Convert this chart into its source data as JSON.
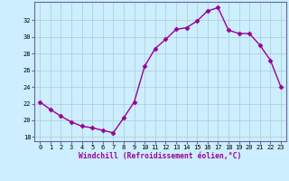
{
  "hours": [
    0,
    1,
    2,
    3,
    4,
    5,
    6,
    7,
    8,
    9,
    10,
    11,
    12,
    13,
    14,
    15,
    16,
    17,
    18,
    19,
    20,
    21,
    22,
    23
  ],
  "windchill": [
    22.2,
    21.3,
    20.5,
    19.8,
    19.3,
    19.1,
    18.8,
    18.5,
    20.3,
    22.2,
    26.5,
    28.6,
    29.7,
    30.9,
    31.1,
    31.9,
    33.1,
    33.5,
    30.8,
    30.4,
    30.4,
    29.0,
    27.2,
    24.0
  ],
  "line_color": "#990099",
  "marker": "D",
  "marker_size": 2.5,
  "bg_color": "#cceeff",
  "grid_color": "#aacccc",
  "xlabel": "Windchill (Refroidissement éolien,°C)",
  "xlabel_color": "#990099",
  "tick_color": "#990099",
  "ylim": [
    17.5,
    34.2
  ],
  "yticks": [
    18,
    20,
    22,
    24,
    26,
    28,
    30,
    32
  ],
  "xticks": [
    0,
    1,
    2,
    3,
    4,
    5,
    6,
    7,
    8,
    9,
    10,
    11,
    12,
    13,
    14,
    15,
    16,
    17,
    18,
    19,
    20,
    21,
    22,
    23
  ],
  "spine_color": "#666699"
}
